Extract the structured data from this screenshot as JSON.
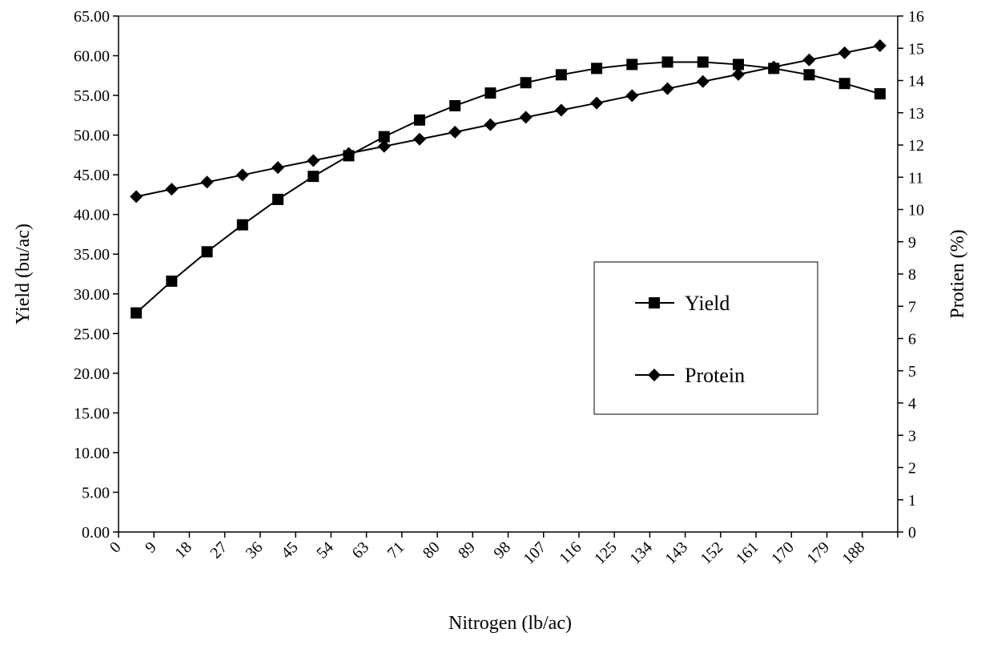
{
  "chart_data": {
    "type": "line",
    "title": "",
    "xlabel": "Nitrogen (lb/ac)",
    "ylabel_left": "Yield (bu/ac)",
    "ylabel_right": "Protien (%)",
    "x_tick_labels": [
      "0",
      "9",
      "18",
      "27",
      "36",
      "45",
      "54",
      "63",
      "71",
      "80",
      "89",
      "98",
      "107",
      "116",
      "125",
      "134",
      "143",
      "152",
      "161",
      "170",
      "179",
      "188"
    ],
    "y_left_ticks": [
      "0.00",
      "5.00",
      "10.00",
      "15.00",
      "20.00",
      "25.00",
      "30.00",
      "35.00",
      "40.00",
      "45.00",
      "50.00",
      "55.00",
      "60.00",
      "65.00"
    ],
    "y_right_ticks": [
      "0",
      "1",
      "2",
      "3",
      "4",
      "5",
      "6",
      "7",
      "8",
      "9",
      "10",
      "11",
      "12",
      "13",
      "14",
      "15",
      "16"
    ],
    "y_left_range": [
      0,
      65
    ],
    "y_right_range": [
      0,
      16
    ],
    "legend_position": "center-right",
    "grid": false,
    "series": [
      {
        "name": "Yield",
        "axis": "left",
        "marker": "square",
        "values": [
          27.6,
          31.6,
          35.3,
          38.7,
          41.9,
          44.8,
          47.4,
          49.8,
          51.9,
          53.7,
          55.3,
          56.6,
          57.6,
          58.4,
          58.9,
          59.2,
          59.2,
          58.9,
          58.4,
          57.6,
          56.5,
          55.2
        ]
      },
      {
        "name": "Protein",
        "axis": "right",
        "marker": "diamond",
        "values": [
          10.4,
          10.63,
          10.85,
          11.07,
          11.3,
          11.52,
          11.74,
          11.96,
          12.18,
          12.4,
          12.63,
          12.86,
          13.08,
          13.3,
          13.53,
          13.75,
          13.97,
          14.19,
          14.42,
          14.64,
          14.86,
          15.08
        ]
      }
    ]
  }
}
